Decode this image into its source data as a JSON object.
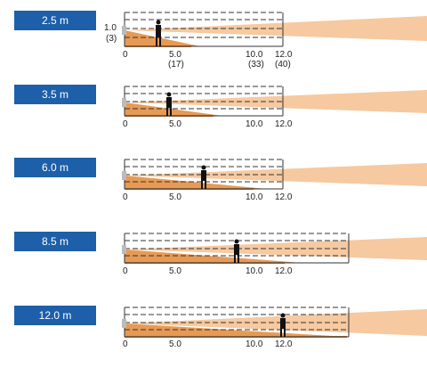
{
  "rows": [
    {
      "badge": "2.5 m",
      "height_label": "1.0",
      "height_label_ft": "(3)",
      "axis_labels": [
        "0",
        "5.0",
        "10.0",
        "12.0"
      ],
      "axis_labels_ft": [
        "",
        "(17)",
        "(33)",
        "(40)"
      ],
      "person_distance_m": 2.5
    },
    {
      "badge": "3.5 m",
      "axis_labels": [
        "0",
        "5.0",
        "10.0",
        "12.0"
      ],
      "person_distance_m": 3.5
    },
    {
      "badge": "6.0 m",
      "axis_labels": [
        "0",
        "5.0",
        "10.0",
        "12.0"
      ],
      "person_distance_m": 6.0
    },
    {
      "badge": "8.5 m",
      "axis_labels": [
        "0",
        "5.0",
        "10.0",
        "12.0"
      ],
      "person_distance_m": 8.5
    },
    {
      "badge": "12.0 m",
      "axis_labels": [
        "0",
        "5.0",
        "10.0",
        "12.0"
      ],
      "person_distance_m": 12.0
    }
  ],
  "colors": {
    "badge": "#1d5fa8",
    "beam_light": "#f6c9a0",
    "beam_dark": "#e79a55",
    "ground": "#c98343",
    "person": "#111111",
    "grid": "#333333"
  }
}
